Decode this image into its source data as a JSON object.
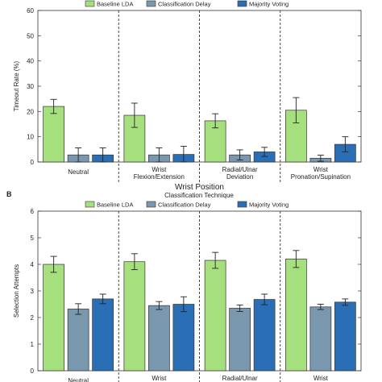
{
  "chart_data": [
    {
      "type": "bar",
      "panel_label": "",
      "categories": [
        "Neutral",
        "Wrist\nFlexion/Extension",
        "Radial/Ulnar\nDeviation",
        "Wrist\nPronation/Supination"
      ],
      "series": [
        {
          "name": "Baseline LDA",
          "color": "#a6df7d",
          "values": [
            22,
            18.5,
            16.3,
            20.5
          ],
          "errors": [
            2.8,
            4.8,
            2.8,
            5.0
          ]
        },
        {
          "name": "Classification Delay",
          "color": "#7a98ad",
          "values": [
            2.8,
            2.8,
            2.8,
            1.5
          ],
          "errors": [
            2.8,
            2.8,
            2.0,
            1.2
          ]
        },
        {
          "name": "Majority Voting",
          "color": "#2a6fb5",
          "values": [
            2.8,
            3.0,
            4.0,
            7.0
          ],
          "errors": [
            2.8,
            3.2,
            1.8,
            3.0
          ]
        }
      ],
      "ylabel": "Timeout Rate (%)",
      "xlabel": "Wrist Position",
      "ylim": [
        0,
        60
      ],
      "yticks": [
        0,
        10,
        20,
        30,
        40,
        50,
        60
      ],
      "legend_title": "",
      "legend": "top"
    },
    {
      "type": "bar",
      "panel_label": "B",
      "categories": [
        "Neutral",
        "Wrist\nFlexion/Extension",
        "Radial/Ulnar\nDeviation",
        "Wrist\nPronation/Supination"
      ],
      "series": [
        {
          "name": "Baseline LDA",
          "color": "#a6df7d",
          "values": [
            4.0,
            4.1,
            4.15,
            4.2
          ],
          "errors": [
            0.3,
            0.3,
            0.3,
            0.32
          ]
        },
        {
          "name": "Classification Delay",
          "color": "#7a98ad",
          "values": [
            2.32,
            2.45,
            2.35,
            2.4
          ],
          "errors": [
            0.2,
            0.15,
            0.12,
            0.1
          ]
        },
        {
          "name": "Majority Voting",
          "color": "#2a6fb5",
          "values": [
            2.7,
            2.5,
            2.68,
            2.58
          ],
          "errors": [
            0.18,
            0.28,
            0.2,
            0.12
          ]
        }
      ],
      "ylabel": "Selection Attempts",
      "xlabel": "",
      "ylim": [
        0,
        6
      ],
      "yticks": [
        0,
        1,
        2,
        3,
        4,
        5,
        6
      ],
      "legend_title": "Classification Technique",
      "legend": "top"
    }
  ]
}
